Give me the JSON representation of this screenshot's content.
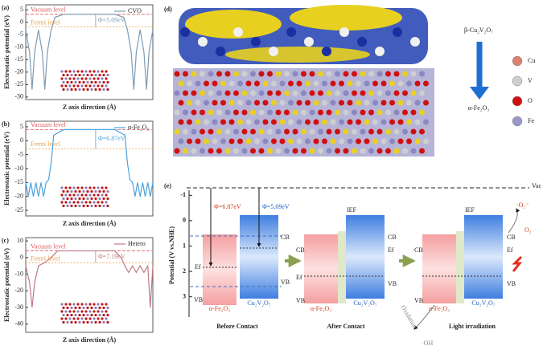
{
  "chart_data": [
    {
      "type": "line",
      "panel_label": "(a)",
      "ylabel": "Electrostatic potential (eV)",
      "xlabel": "Z axis direction (Å)",
      "xlim": [
        0,
        100
      ],
      "ylim": [
        -31,
        7
      ],
      "yticks": [
        5,
        0,
        -5,
        -10,
        -15,
        -20,
        -25,
        -30
      ],
      "x": [
        0,
        3,
        5,
        7,
        10,
        13,
        15,
        17,
        20,
        23,
        30,
        50,
        70,
        77,
        80,
        83,
        85,
        87,
        90,
        93,
        95,
        97,
        100
      ],
      "series": [
        {
          "name": "CVO",
          "color": "#7e9bb3",
          "values": [
            -3,
            -12,
            -27,
            -12,
            -3,
            -12,
            -27,
            -12,
            -3,
            2,
            3.2,
            3.2,
            3.2,
            2,
            -3,
            -12,
            -27,
            -12,
            -3,
            -12,
            -27,
            -12,
            -3
          ]
        }
      ],
      "reference_lines": [
        {
          "label": "Vacuum level",
          "value": 3.2,
          "color": "#e05a5a"
        },
        {
          "label": "Fermi level",
          "value": -1.9,
          "color": "#f0a040"
        }
      ],
      "annotation": "Φ=5.09eV"
    },
    {
      "type": "line",
      "panel_label": "(b)",
      "ylabel": "Electrostatic potential (eV)",
      "xlabel": "Z axis direction (Å)",
      "xlim": [
        0,
        100
      ],
      "ylim": [
        -27,
        7
      ],
      "yticks": [
        5,
        0,
        -5,
        -10,
        -15,
        -20,
        -25
      ],
      "x": [
        0,
        2,
        4,
        6,
        8,
        10,
        12,
        14,
        16,
        18,
        20,
        22,
        30,
        50,
        70,
        78,
        80,
        82,
        84,
        86,
        88,
        90,
        92,
        94,
        96,
        98,
        100
      ],
      "series": [
        {
          "name": "α-Fe₂O₃",
          "color": "#4aa3e0",
          "values": [
            -15,
            -20,
            -15,
            -20,
            -15,
            -20,
            -15,
            -20,
            -15,
            -14,
            -8,
            2,
            4,
            4,
            4,
            2,
            -8,
            -14,
            -15,
            -20,
            -15,
            -20,
            -15,
            -20,
            -15,
            -20,
            -15
          ]
        }
      ],
      "reference_lines": [
        {
          "label": "Vacuum level",
          "value": 4,
          "color": "#e05a5a"
        },
        {
          "label": "Fermi level",
          "value": -2.9,
          "color": "#f0a040"
        }
      ],
      "annotation": "Φ=6.87eV"
    },
    {
      "type": "line",
      "panel_label": "(c)",
      "ylabel": "Electrostatic potential (eV)",
      "xlabel": "Z axis direction (Å)",
      "xlim": [
        0,
        100
      ],
      "ylim": [
        -45,
        12
      ],
      "yticks": [
        10,
        0,
        -10,
        -20,
        -30,
        -40
      ],
      "x": [
        0,
        3,
        5,
        7,
        10,
        15,
        20,
        25,
        50,
        70,
        75,
        78,
        81,
        84,
        87,
        90,
        93,
        96,
        98,
        100
      ],
      "series": [
        {
          "name": "Hetero",
          "color": "#c07a86",
          "values": [
            -5,
            -15,
            -30,
            -15,
            -5,
            -3,
            0,
            4,
            4,
            4,
            0,
            -5,
            -9,
            -5,
            -9,
            -5,
            -9,
            -5,
            -30,
            -5
          ]
        }
      ],
      "reference_lines": [
        {
          "label": "Vacuum level",
          "value": 4,
          "color": "#e05a5a"
        },
        {
          "label": "Fermi level",
          "value": -3.2,
          "color": "#f0a040"
        }
      ],
      "annotation": "Φ=7.19eV"
    }
  ],
  "structure_panel": {
    "panel_label": "(d)",
    "top_material": "β-Cu₂V₂O₇",
    "bottom_material": "α-Fe₂O₃",
    "legend": [
      {
        "name": "Cu",
        "color": "#d9826f"
      },
      {
        "name": "V",
        "color": "#cfcfcf"
      },
      {
        "name": "O",
        "color": "#d01010"
      },
      {
        "name": "Fe",
        "color": "#9a98c8"
      }
    ]
  },
  "energy_diagram": {
    "panel_label": "(e)",
    "ylabel": "Potential (V vs.NHE)",
    "ylim": [
      -1.2,
      3.8
    ],
    "yticks": [
      -1,
      0,
      1,
      2,
      3
    ],
    "vacuum_label": "Vac",
    "cb": "CB",
    "vb": "VB",
    "ef": "Ef",
    "materials": [
      "α-Fe₂O₃",
      "Cu₂V₂O₇"
    ],
    "work_functions": [
      "Φ=6.87eV",
      "Φ=5.09eV"
    ],
    "stages": [
      "Before Contact",
      "After Contact",
      "Light irradiation"
    ],
    "ief": "IEF",
    "superoxide": "·O₂⁻",
    "oxygen": "O₂",
    "oxidation": "Oxidation",
    "hydroxyl": "·OH"
  }
}
